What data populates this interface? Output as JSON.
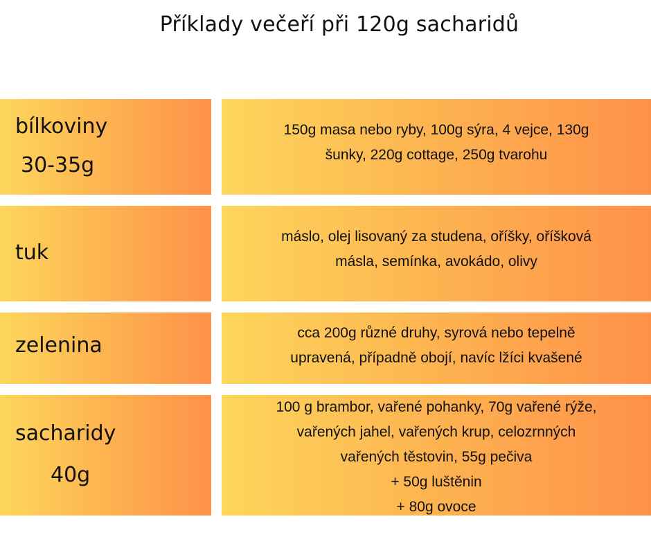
{
  "title": "Příklady večeří při 120g sacharidů",
  "rows": [
    {
      "label": [
        "bílkoviny",
        "30-35g"
      ],
      "description": [
        "150g masa nebo ryby, 100g sýra, 4 vejce, 130g",
        "šunky, 220g cottage, 250g tvarohu"
      ]
    },
    {
      "label": [
        "tuk"
      ],
      "description": [
        "máslo, olej lisovaný za studena, oříšky, oříšková",
        "másla, semínka, avokádo, olivy"
      ]
    },
    {
      "label": [
        "zelenina"
      ],
      "description": [
        "cca 200g různé druhy, syrová nebo tepelně",
        "upravená, případně obojí, navíc lžíci kvašené"
      ]
    },
    {
      "label": [
        "sacharidy",
        "40g"
      ],
      "description": [
        "100 g brambor, vařené pohanky, 70g vařené rýže,",
        "vařených jahel, vařených krup, celozrnných",
        "vařených těstovin, 55g pečiva",
        "+ 50g luštěnin",
        "+ 80g ovoce"
      ]
    }
  ]
}
